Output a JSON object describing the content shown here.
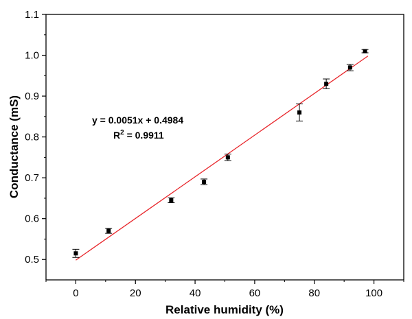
{
  "chart_data": {
    "type": "scatter",
    "xlabel": "Relative humidity (%)",
    "ylabel": "Conductance (mS)",
    "xlim": [
      -10,
      110
    ],
    "ylim": [
      0.45,
      1.1
    ],
    "x_ticks": [
      0,
      20,
      40,
      60,
      80,
      100
    ],
    "y_ticks": [
      0.5,
      0.6,
      0.7,
      0.8,
      0.9,
      1.0,
      1.1
    ],
    "x_tick_labels": [
      "0",
      "20",
      "40",
      "60",
      "80",
      "100"
    ],
    "y_tick_labels": [
      "0.5",
      "0.6",
      "0.7",
      "0.8",
      "0.9",
      "1.0",
      "1.1"
    ],
    "grid": false,
    "points": [
      {
        "x": 0,
        "y": 0.515,
        "err": 0.01
      },
      {
        "x": 11,
        "y": 0.57,
        "err": 0.006
      },
      {
        "x": 32,
        "y": 0.645,
        "err": 0.006
      },
      {
        "x": 43,
        "y": 0.69,
        "err": 0.007
      },
      {
        "x": 51,
        "y": 0.75,
        "err": 0.008
      },
      {
        "x": 75,
        "y": 0.86,
        "err": 0.021
      },
      {
        "x": 84,
        "y": 0.93,
        "err": 0.012
      },
      {
        "x": 92,
        "y": 0.97,
        "err": 0.008
      },
      {
        "x": 97,
        "y": 1.01,
        "err": 0.004
      }
    ],
    "fit": {
      "slope": 0.0051,
      "intercept": 0.4984,
      "x_range": [
        0,
        98
      ],
      "color": "#e8262b",
      "equation_text": "y = 0.0051x + 0.4984",
      "r2_prefix": "R",
      "r2_sup": "2",
      "r2_value": " = 0.9911"
    },
    "marker_color": "#000000"
  }
}
